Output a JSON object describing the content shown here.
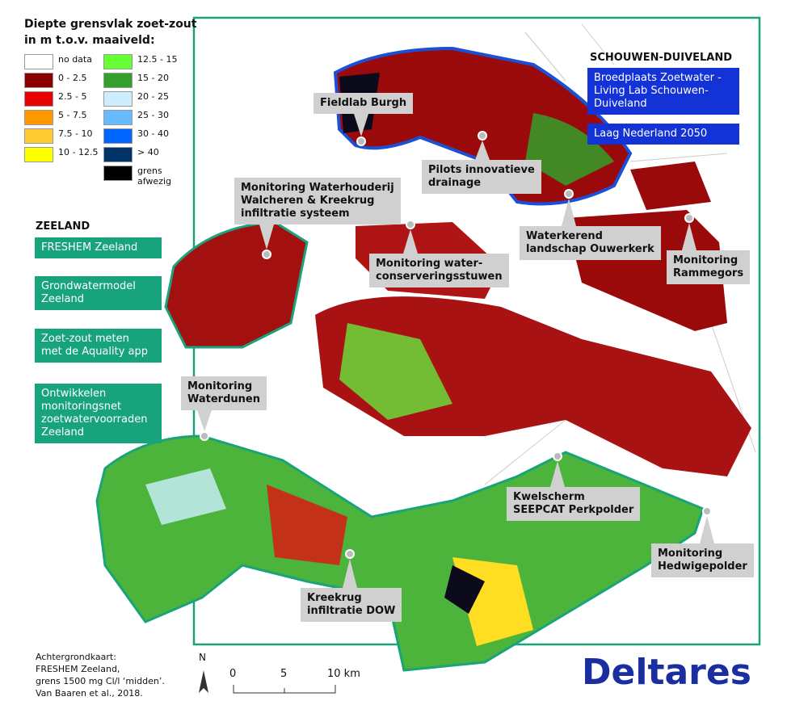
{
  "legend": {
    "title_lines": [
      "Diepte grensvlak zoet-zout",
      "in m t.o.v. maaiveld:"
    ],
    "items": [
      {
        "label": "no data",
        "color": "#ffffff"
      },
      {
        "label": "0 - 2.5",
        "color": "#8b0000"
      },
      {
        "label": "2.5 - 5",
        "color": "#e60000"
      },
      {
        "label": "5 - 7.5",
        "color": "#ff9900"
      },
      {
        "label": "7.5 - 10",
        "color": "#ffcc33"
      },
      {
        "label": "10 - 12.5",
        "color": "#ffff00"
      },
      {
        "label": "12.5 - 15",
        "color": "#66ff33"
      },
      {
        "label": "15 - 20",
        "color": "#33a02c"
      },
      {
        "label": "20 - 25",
        "color": "#cceeff"
      },
      {
        "label": "25 - 30",
        "color": "#66bbff"
      },
      {
        "label": "30 - 40",
        "color": "#0066ff"
      },
      {
        "label": "> 40",
        "color": "#003366"
      },
      {
        "label": "grens afwezig",
        "color": "#000000"
      }
    ]
  },
  "schouwen": {
    "title": "SCHOUWEN-DUIVELAND",
    "buttons": [
      [
        "Broedplaats Zoetwater -",
        "Living Lab Schouwen-",
        "Duiveland"
      ],
      [
        "Laag Nederland 2050"
      ]
    ]
  },
  "zeeland": {
    "title": "ZEELAND",
    "buttons": [
      [
        "FRESHEM Zeeland"
      ],
      [
        "Grondwatermodel",
        "Zeeland"
      ],
      [
        "Zoet-zout meten",
        "met de Aquality app"
      ],
      [
        "Ontwikkelen",
        "monitoringsnet",
        "zoetwatervoorraden",
        "Zeeland"
      ]
    ]
  },
  "callouts": [
    [
      "Fieldlab Burgh"
    ],
    [
      "Pilots innovatieve",
      "drainage"
    ],
    [
      "Monitoring Waterhouderij",
      "Walcheren & Kreekrug",
      "infiltratie systeem"
    ],
    [
      "Waterkerend",
      "landschap Ouwerkerk"
    ],
    [
      "Monitoring",
      "Rammegors"
    ],
    [
      "Monitoring water-",
      "conserveringsstuwen"
    ],
    [
      "Monitoring",
      "Waterdunen"
    ],
    [
      "Kwelscherm",
      "SEEPCAT Perkpolder"
    ],
    [
      "Monitoring",
      "Hedwigepolder"
    ],
    [
      "Kreekrug",
      "infiltratie DOW"
    ]
  ],
  "source_lines": [
    "Achtergrondkaart:",
    "FRESHEM Zeeland,",
    "grens 1500 mg Cl/l ‘midden’.",
    "Van Baaren et al., 2018."
  ],
  "north": "N",
  "scale_labels": [
    "0",
    "5",
    "10 km"
  ],
  "logo": "Deltares"
}
